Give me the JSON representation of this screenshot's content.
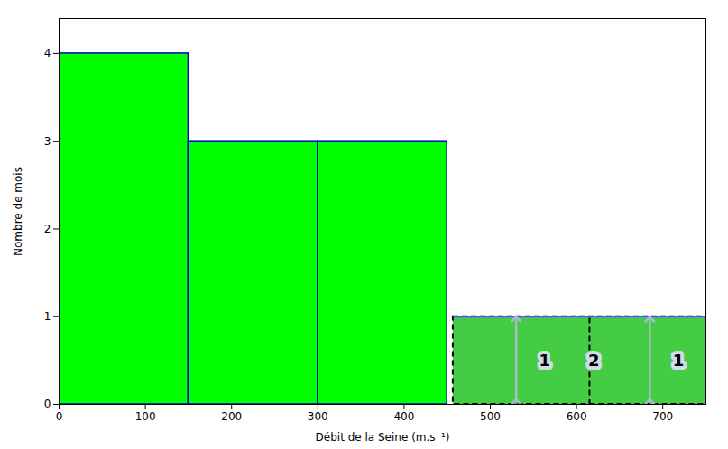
{
  "chart_data": {
    "type": "histogram",
    "xlabel": "Débit de la Seine (m.s⁻¹)",
    "ylabel": "Nombre de mois",
    "bins": [
      0,
      150,
      300,
      450
    ],
    "counts": [
      4,
      3,
      3
    ],
    "color": "#00FF00",
    "edgecolor": "#0000CC",
    "xlim": [
      0,
      750
    ],
    "ylim": [
      0,
      4.4
    ],
    "xticks": [
      0,
      100,
      200,
      300,
      400,
      500,
      600,
      700
    ],
    "yticks": [
      0,
      1,
      2,
      3,
      4
    ],
    "grid": false,
    "inset": {
      "x": [
        457,
        750
      ],
      "y": [
        0.0,
        1.0
      ],
      "color": "#44CC44",
      "edgecolor": "#000000",
      "top_color": "#5555FF",
      "divider_x": 615,
      "arrows": [
        {
          "x": 530,
          "y": [
            0.03,
            0.97
          ]
        },
        {
          "x": 685,
          "y": [
            0.03,
            0.97
          ]
        }
      ],
      "arrow_color": "#AABBCC",
      "label_bg_color": "#D0DCE8"
    },
    "annotations": [
      {
        "text": "1",
        "x": 563,
        "y": 0.5
      },
      {
        "text": "2",
        "x": 620,
        "y": 0.5
      },
      {
        "text": "1",
        "x": 718,
        "y": 0.5
      }
    ]
  }
}
